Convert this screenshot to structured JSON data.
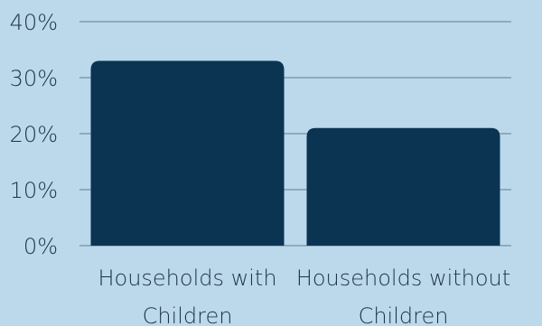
{
  "colors": {
    "background": "#bcd8eb",
    "bar": "#0a3452",
    "grid": "#5f7f95",
    "text": "#1e3446"
  },
  "chart_data": {
    "type": "bar",
    "title": "",
    "xlabel": "",
    "ylabel": "",
    "categories": [
      [
        "Households with",
        "Children"
      ],
      [
        "Households without",
        "Children"
      ]
    ],
    "values": [
      33,
      21
    ],
    "ylim": [
      0,
      40
    ],
    "yticks": [
      "0%",
      "10%",
      "20%",
      "30%",
      "40%"
    ],
    "grid": true,
    "legend": "none"
  }
}
